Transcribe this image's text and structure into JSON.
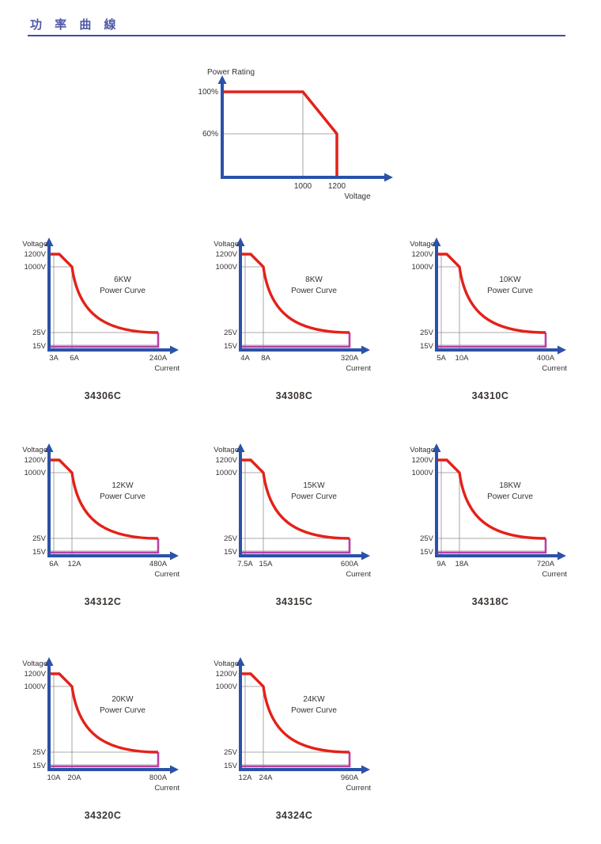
{
  "header": {
    "title": "功 率 曲 線"
  },
  "colors": {
    "axis_blue": "#2B52A8",
    "curve_red": "#E32119",
    "accent_magenta": "#BC3FA3",
    "grid_gray": "#8F8F8F",
    "header_text": "#4D58A6",
    "header_rule": "#3D4DA1",
    "model_text": "#3B3532",
    "chart_text": "#333333"
  },
  "chart_data": [
    {
      "id": "power-rating-overview",
      "type": "line",
      "ylabel": "Power Rating",
      "xlabel": "Voltage",
      "yticks": [
        "100%",
        "60%"
      ],
      "xticks": [
        "1000",
        "1200"
      ],
      "series": [
        {
          "name": "power-rating-vs-voltage",
          "x": [
            0,
            1000,
            1200,
            1200
          ],
          "y_percent": [
            100,
            100,
            60,
            0
          ]
        }
      ],
      "note": "100% power up to 1000 V, linear derating to 60% at 1200 V, cutoff at 1200 V"
    },
    {
      "id": "34306C",
      "type": "line",
      "model": "34306C",
      "power": "6KW",
      "subtitle": "Power Curve",
      "ylabel": "Voltage",
      "xlabel": "Current",
      "yticks": [
        "1200V",
        "1000V",
        "25V",
        "15V"
      ],
      "xticks": [
        "3A",
        "6A",
        "240A"
      ],
      "series": [
        {
          "name": "power-curve",
          "points_a_v": [
            [
              0,
              1200
            ],
            [
              3,
              1200
            ],
            [
              6,
              1000
            ],
            [
              240,
              25
            ]
          ]
        },
        {
          "name": "min-voltage-line",
          "points_a_v": [
            [
              240,
              25
            ],
            [
              240,
              15
            ],
            [
              0,
              15
            ]
          ]
        }
      ]
    },
    {
      "id": "34308C",
      "type": "line",
      "model": "34308C",
      "power": "8KW",
      "subtitle": "Power Curve",
      "ylabel": "Voltage",
      "xlabel": "Current",
      "yticks": [
        "1200V",
        "1000V",
        "25V",
        "15V"
      ],
      "xticks": [
        "4A",
        "8A",
        "320A"
      ],
      "series": [
        {
          "name": "power-curve",
          "points_a_v": [
            [
              0,
              1200
            ],
            [
              4,
              1200
            ],
            [
              8,
              1000
            ],
            [
              320,
              25
            ]
          ]
        },
        {
          "name": "min-voltage-line",
          "points_a_v": [
            [
              320,
              25
            ],
            [
              320,
              15
            ],
            [
              0,
              15
            ]
          ]
        }
      ]
    },
    {
      "id": "34310C",
      "type": "line",
      "model": "34310C",
      "power": "10KW",
      "subtitle": "Power Curve",
      "ylabel": "Voltage",
      "xlabel": "Current",
      "yticks": [
        "1200V",
        "1000V",
        "25V",
        "15V"
      ],
      "xticks": [
        "5A",
        "10A",
        "400A"
      ],
      "series": [
        {
          "name": "power-curve",
          "points_a_v": [
            [
              0,
              1200
            ],
            [
              5,
              1200
            ],
            [
              10,
              1000
            ],
            [
              400,
              25
            ]
          ]
        },
        {
          "name": "min-voltage-line",
          "points_a_v": [
            [
              400,
              25
            ],
            [
              400,
              15
            ],
            [
              0,
              15
            ]
          ]
        }
      ]
    },
    {
      "id": "34312C",
      "type": "line",
      "model": "34312C",
      "power": "12KW",
      "subtitle": "Power Curve",
      "ylabel": "Voltage",
      "xlabel": "Current",
      "yticks": [
        "1200V",
        "1000V",
        "25V",
        "15V"
      ],
      "xticks": [
        "6A",
        "12A",
        "480A"
      ],
      "series": [
        {
          "name": "power-curve",
          "points_a_v": [
            [
              0,
              1200
            ],
            [
              6,
              1200
            ],
            [
              12,
              1000
            ],
            [
              480,
              25
            ]
          ]
        },
        {
          "name": "min-voltage-line",
          "points_a_v": [
            [
              480,
              25
            ],
            [
              480,
              15
            ],
            [
              0,
              15
            ]
          ]
        }
      ]
    },
    {
      "id": "34315C",
      "type": "line",
      "model": "34315C",
      "power": "15KW",
      "subtitle": "Power Curve",
      "ylabel": "Voltage",
      "xlabel": "Current",
      "yticks": [
        "1200V",
        "1000V",
        "25V",
        "15V"
      ],
      "xticks": [
        "7.5A",
        "15A",
        "600A"
      ],
      "series": [
        {
          "name": "power-curve",
          "points_a_v": [
            [
              0,
              1200
            ],
            [
              7.5,
              1200
            ],
            [
              15,
              1000
            ],
            [
              600,
              25
            ]
          ]
        },
        {
          "name": "min-voltage-line",
          "points_a_v": [
            [
              600,
              25
            ],
            [
              600,
              15
            ],
            [
              0,
              15
            ]
          ]
        }
      ]
    },
    {
      "id": "34318C",
      "type": "line",
      "model": "34318C",
      "power": "18KW",
      "subtitle": "Power Curve",
      "ylabel": "Voltage",
      "xlabel": "Current",
      "yticks": [
        "1200V",
        "1000V",
        "25V",
        "15V"
      ],
      "xticks": [
        "9A",
        "18A",
        "720A"
      ],
      "series": [
        {
          "name": "power-curve",
          "points_a_v": [
            [
              0,
              1200
            ],
            [
              9,
              1200
            ],
            [
              18,
              1000
            ],
            [
              720,
              25
            ]
          ]
        },
        {
          "name": "min-voltage-line",
          "points_a_v": [
            [
              720,
              25
            ],
            [
              720,
              15
            ],
            [
              0,
              15
            ]
          ]
        }
      ]
    },
    {
      "id": "34320C",
      "type": "line",
      "model": "34320C",
      "power": "20KW",
      "subtitle": "Power Curve",
      "ylabel": "Voltage",
      "xlabel": "Current",
      "yticks": [
        "1200V",
        "1000V",
        "25V",
        "15V"
      ],
      "xticks": [
        "10A",
        "20A",
        "800A"
      ],
      "series": [
        {
          "name": "power-curve",
          "points_a_v": [
            [
              0,
              1200
            ],
            [
              10,
              1200
            ],
            [
              20,
              1000
            ],
            [
              800,
              25
            ]
          ]
        },
        {
          "name": "min-voltage-line",
          "points_a_v": [
            [
              800,
              25
            ],
            [
              800,
              15
            ],
            [
              0,
              15
            ]
          ]
        }
      ]
    },
    {
      "id": "34324C",
      "type": "line",
      "model": "34324C",
      "power": "24KW",
      "subtitle": "Power Curve",
      "ylabel": "Voltage",
      "xlabel": "Current",
      "yticks": [
        "1200V",
        "1000V",
        "25V",
        "15V"
      ],
      "xticks": [
        "12A",
        "24A",
        "960A"
      ],
      "series": [
        {
          "name": "power-curve",
          "points_a_v": [
            [
              0,
              1200
            ],
            [
              12,
              1200
            ],
            [
              24,
              1000
            ],
            [
              960,
              25
            ]
          ]
        },
        {
          "name": "min-voltage-line",
          "points_a_v": [
            [
              960,
              25
            ],
            [
              960,
              15
            ],
            [
              0,
              15
            ]
          ]
        }
      ]
    }
  ]
}
